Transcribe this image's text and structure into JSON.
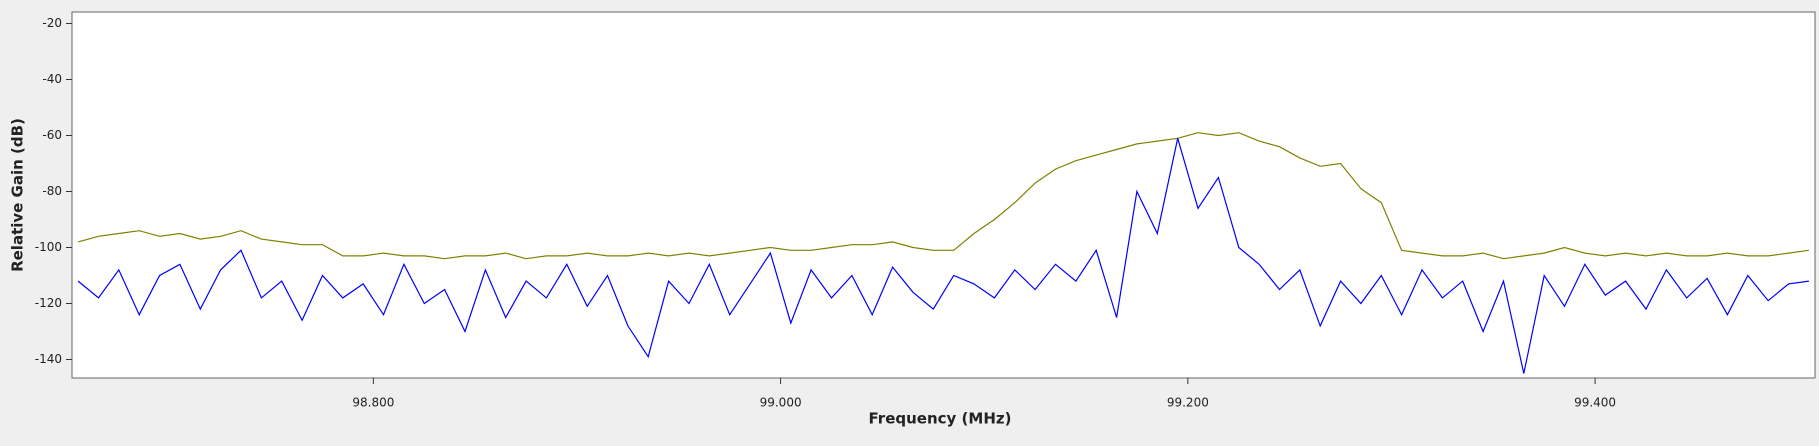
{
  "chart_data": {
    "type": "line",
    "xlabel": "Frequency (MHz)",
    "ylabel": "Relative Gain (dB)",
    "x": [
      98.655,
      98.665,
      98.675,
      98.685,
      98.695,
      98.705,
      98.715,
      98.725,
      98.735,
      98.745,
      98.755,
      98.765,
      98.775,
      98.785,
      98.795,
      98.805,
      98.815,
      98.825,
      98.835,
      98.845,
      98.855,
      98.865,
      98.875,
      98.885,
      98.895,
      98.905,
      98.915,
      98.925,
      98.935,
      98.945,
      98.955,
      98.965,
      98.975,
      98.985,
      98.995,
      99.005,
      99.015,
      99.025,
      99.035,
      99.045,
      99.055,
      99.065,
      99.075,
      99.085,
      99.095,
      99.105,
      99.115,
      99.125,
      99.135,
      99.145,
      99.155,
      99.165,
      99.175,
      99.185,
      99.195,
      99.205,
      99.215,
      99.225,
      99.235,
      99.245,
      99.255,
      99.265,
      99.275,
      99.285,
      99.295,
      99.305,
      99.315,
      99.325,
      99.335,
      99.345,
      99.355,
      99.365,
      99.375,
      99.385,
      99.395,
      99.405,
      99.415,
      99.425,
      99.435,
      99.445,
      99.455,
      99.465,
      99.475,
      99.485,
      99.495,
      99.505
    ],
    "series": [
      {
        "color": "#808000",
        "values": [
          -98,
          -96,
          -95,
          -94,
          -96,
          -95,
          -97,
          -96,
          -94,
          -97,
          -98,
          -99,
          -99,
          -103,
          -103,
          -102,
          -103,
          -103,
          -104,
          -103,
          -103,
          -102,
          -104,
          -103,
          -103,
          -102,
          -103,
          -103,
          -102,
          -103,
          -102,
          -103,
          -102,
          -101,
          -100,
          -101,
          -101,
          -100,
          -99,
          -99,
          -98,
          -100,
          -101,
          -101,
          -95,
          -90,
          -84,
          -77,
          -72,
          -69,
          -67,
          -65,
          -63,
          -62,
          -61,
          -59,
          -60,
          -59,
          -62,
          -64,
          -68,
          -71,
          -70,
          -79,
          -84,
          -101,
          -102,
          -103,
          -103,
          -102,
          -104,
          -103,
          -102,
          -100,
          -102,
          -103,
          -102,
          -103,
          -102,
          -103,
          -103,
          -102,
          -103,
          -103,
          -102,
          -101
        ]
      },
      {
        "color": "#0000ff",
        "values": [
          -112,
          -118,
          -108,
          -124,
          -110,
          -106,
          -122,
          -108,
          -101,
          -118,
          -112,
          -126,
          -110,
          -118,
          -113,
          -124,
          -106,
          -120,
          -115,
          -130,
          -108,
          -125,
          -112,
          -118,
          -106,
          -121,
          -110,
          -128,
          -139,
          -112,
          -120,
          -106,
          -124,
          -113,
          -102,
          -127,
          -108,
          -118,
          -110,
          -124,
          -107,
          -116,
          -122,
          -110,
          -113,
          -118,
          -108,
          -115,
          -106,
          -112,
          -101,
          -125,
          -80,
          -95,
          -61,
          -86,
          -75,
          -100,
          -106,
          -115,
          -108,
          -128,
          -112,
          -120,
          -110,
          -124,
          -108,
          -118,
          -112,
          -130,
          -112,
          -145,
          -110,
          -121,
          -106,
          -117,
          -112,
          -122,
          -108,
          -118,
          -111,
          -124,
          -110,
          -119,
          -113,
          -112
        ]
      }
    ],
    "xlim": [
      98.652,
      99.508
    ],
    "xticks": [
      {
        "value": 98.8,
        "label": "98.800"
      },
      {
        "value": 99.0,
        "label": "99.000"
      },
      {
        "value": 99.2,
        "label": "99.200"
      },
      {
        "value": 99.4,
        "label": "99.400"
      }
    ],
    "ylim": [
      -146.6,
      -15.9
    ],
    "yticks": [
      -140,
      -120,
      -100,
      -80,
      -60,
      -40,
      -20
    ]
  }
}
